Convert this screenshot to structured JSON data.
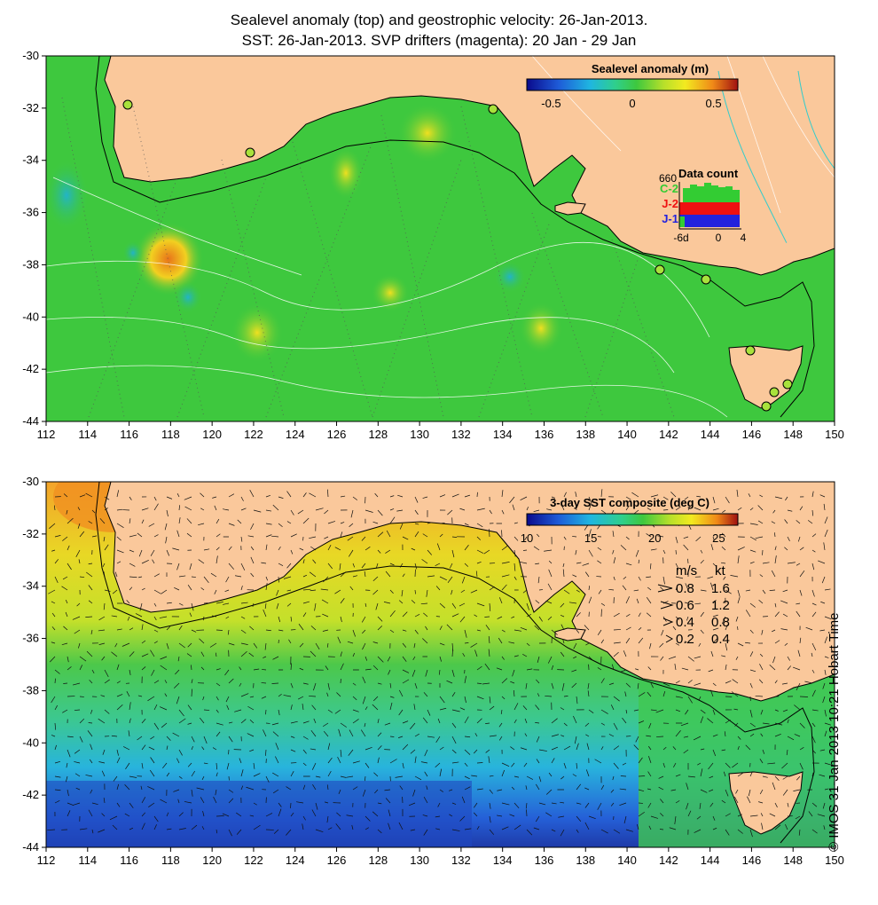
{
  "title": {
    "line1": "Sealevel anomaly (top) and geostrophic velocity: 26-Jan-2013.",
    "line2": "SST: 26-Jan-2013. SVP drifters (magenta): 20 Jan - 29 Jan"
  },
  "panel_top": {
    "lon_ticks": [
      "112",
      "114",
      "116",
      "118",
      "120",
      "122",
      "124",
      "126",
      "128",
      "130",
      "132",
      "134",
      "136",
      "138",
      "140",
      "142",
      "144",
      "146",
      "148",
      "150"
    ],
    "lat_ticks": [
      "-30",
      "-32",
      "-34",
      "-36",
      "-38",
      "-40",
      "-42",
      "-44"
    ],
    "colorbar": {
      "title": "Sealevel anomaly (m)",
      "labels": [
        "-0.5",
        "0",
        "0.5"
      ],
      "range": [
        -0.65,
        0.65
      ]
    },
    "data_count": {
      "title": "Data count",
      "max_label": "660",
      "satellites": [
        "C-2",
        "J-2",
        "J-1"
      ],
      "satellite_colors": [
        "#33cc33",
        "#ee1111",
        "#2222dd"
      ],
      "x_labels": [
        "-6d",
        "0",
        "4"
      ]
    },
    "colors": {
      "land": "#fac89b",
      "ocean_base": "#3ec83e",
      "contour": "#ffffff",
      "coast": "#000000"
    }
  },
  "panel_bottom": {
    "lon_ticks": [
      "112",
      "114",
      "116",
      "118",
      "120",
      "122",
      "124",
      "126",
      "128",
      "130",
      "132",
      "134",
      "136",
      "138",
      "140",
      "142",
      "144",
      "146",
      "148",
      "150"
    ],
    "lat_ticks": [
      "-30",
      "-32",
      "-34",
      "-36",
      "-38",
      "-40",
      "-42",
      "-44"
    ],
    "colorbar": {
      "title": "3-day SST composite (deg C)",
      "labels": [
        "10",
        "15",
        "20",
        "25"
      ],
      "range": [
        10,
        26.5
      ]
    },
    "velocity_key": {
      "header_ms": "m/s",
      "header_kt": "kt",
      "rows": [
        {
          "ms": "0.8",
          "kt": "1.6"
        },
        {
          "ms": "0.6",
          "kt": "1.2"
        },
        {
          "ms": "0.4",
          "kt": "0.8"
        },
        {
          "ms": "0.2",
          "kt": "0.4"
        }
      ]
    }
  },
  "stamp": "© IMOS 31-Jan-2013 10:21 Hobart Time"
}
